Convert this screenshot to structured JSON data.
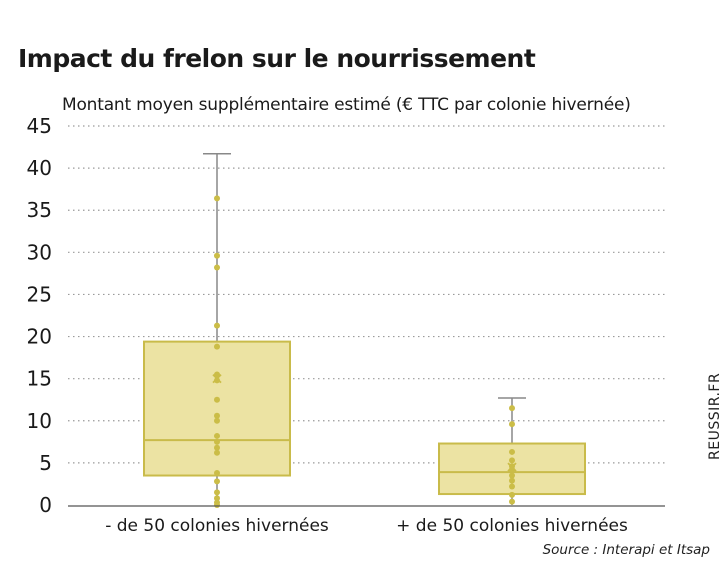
{
  "header": {
    "title": "Impact du frelon sur le nourrissement",
    "subtitle": "Montant moyen supplémentaire estimé (€ TTC par colonie hivernée)"
  },
  "footer": {
    "source": "Source : Interapi et Itsap",
    "watermark": "REUSSIR.FR"
  },
  "colors": {
    "box_fill": "#ece3a3",
    "box_stroke": "#c9bb4a",
    "point": "#cbbd47",
    "whisker": "#888888",
    "grid": "#9a9a9a"
  },
  "chart_data": {
    "type": "box",
    "title": "Impact du frelon sur le nourrissement",
    "ylabel": "Montant moyen supplémentaire estimé (€ TTC par colonie hivernée)",
    "xlabel": "",
    "ylim": [
      0,
      45
    ],
    "yticks": [
      0,
      5,
      10,
      15,
      20,
      25,
      30,
      35,
      40,
      45
    ],
    "grid": true,
    "categories": [
      "- de 50 colonies hivernées",
      "+ de 50 colonies hivernées"
    ],
    "boxes": [
      {
        "category": "- de 50 colonies hivernées",
        "min": 0,
        "q1": 3.5,
        "median": 7.7,
        "q3": 19.4,
        "max": 41.7,
        "mean": 15,
        "points": [
          0,
          0.3,
          0.8,
          1.5,
          2.8,
          3.8,
          6.2,
          6.8,
          7.5,
          8.2,
          10,
          10.6,
          12.5,
          14.8,
          15.5,
          18.8,
          21.3,
          28.2,
          29.6,
          36.4
        ]
      },
      {
        "category": "+ de 50 colonies hivernées",
        "min": 0,
        "q1": 1.3,
        "median": 3.9,
        "q3": 7.3,
        "max": 12.7,
        "mean": 4.5,
        "points": [
          0.4,
          1.2,
          2.2,
          2.9,
          3.5,
          4.2,
          4.6,
          5.3,
          6.3,
          9.6,
          11.5
        ]
      }
    ]
  }
}
